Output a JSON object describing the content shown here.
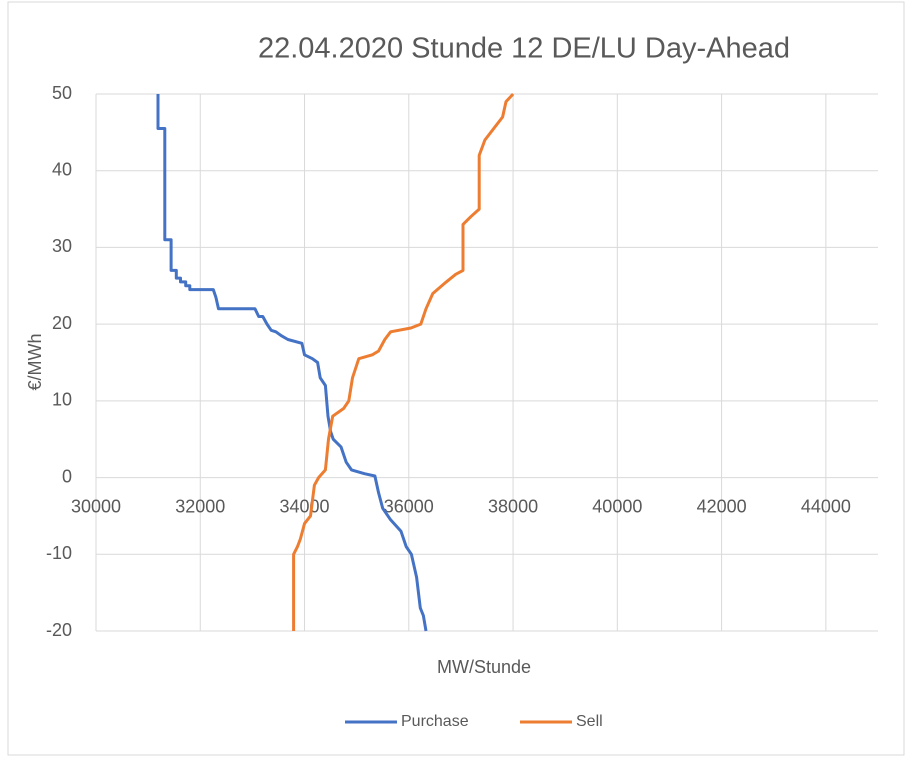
{
  "chart_data": {
    "type": "line",
    "title": "22.04.2020 Stunde 12 DE/LU Day-Ahead",
    "x_label": "MW/Stunde",
    "y_label": "€/MWh",
    "xlim": [
      30000,
      45000
    ],
    "xticks": [
      30000,
      32000,
      34000,
      36000,
      38000,
      40000,
      42000,
      44000
    ],
    "ylim": [
      -20,
      50
    ],
    "yticks": [
      -20,
      -10,
      0,
      10,
      20,
      30,
      40,
      50
    ],
    "grid": true,
    "legend": "bottom",
    "series": [
      {
        "name": "Purchase",
        "color": "#4472c4",
        "x": [
          31190,
          31190,
          31320,
          31320,
          31440,
          31440,
          31540,
          31540,
          31620,
          31620,
          31720,
          31720,
          31800,
          31800,
          32250,
          32300,
          32350,
          33050,
          33120,
          33200,
          33280,
          33360,
          33450,
          33550,
          33680,
          33950,
          34000,
          34150,
          34250,
          34300,
          34400,
          34450,
          34500,
          34550,
          34700,
          34800,
          34900,
          35150,
          35350,
          35420,
          35500,
          35650,
          35850,
          35950,
          36050,
          36150,
          36220,
          36280,
          36330
        ],
        "values": [
          50,
          45.5,
          45.5,
          31,
          31,
          27,
          27,
          26,
          26,
          25.5,
          25.5,
          25,
          25,
          24.5,
          24.5,
          23.5,
          22,
          22,
          21,
          21,
          20,
          19.2,
          19,
          18.5,
          18,
          17.5,
          16,
          15.5,
          15,
          13,
          12,
          8,
          6,
          5,
          4,
          2,
          1,
          0.5,
          0.2,
          -2,
          -4,
          -5.5,
          -7,
          -9,
          -10,
          -13,
          -17,
          -18,
          -20
        ]
      },
      {
        "name": "Sell",
        "color": "#ed7d31",
        "x": [
          38000,
          37865,
          37800,
          37460,
          37350,
          37350,
          37190,
          37040,
          37040,
          36900,
          36720,
          36460,
          36330,
          36230,
          36040,
          35650,
          35540,
          35420,
          35300,
          35040,
          34920,
          34850,
          34750,
          34540,
          34460,
          34400,
          34270,
          34190,
          34115,
          34000,
          33920,
          33865,
          33790,
          33790
        ],
        "values": [
          50,
          49,
          47,
          44,
          42,
          35,
          34,
          33,
          27,
          26.5,
          25.5,
          24,
          22,
          20,
          19.5,
          19,
          18,
          16.5,
          16,
          15.5,
          13,
          10,
          9,
          8,
          5,
          1,
          0,
          -1,
          -5,
          -6,
          -8,
          -9,
          -10,
          -20
        ]
      }
    ]
  }
}
